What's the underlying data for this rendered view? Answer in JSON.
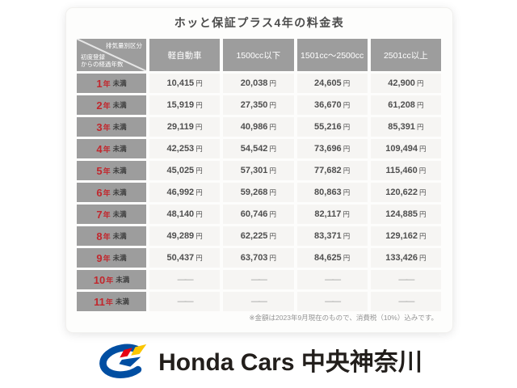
{
  "title": "ホッと保証プラス4年の料金表",
  "table": {
    "corner": {
      "top_right": "排気量別区分",
      "bottom_left": "初度登録\nからの経過年数"
    },
    "columns": [
      "軽自動車",
      "1500cc以下",
      "1501cc〜2500cc",
      "2501cc以上"
    ],
    "rows": [
      {
        "year": "1",
        "year_unit": "年",
        "suffix": "未満",
        "unit": "円",
        "values": [
          "10,415",
          "20,038",
          "24,605",
          "42,900"
        ]
      },
      {
        "year": "2",
        "year_unit": "年",
        "suffix": "未満",
        "unit": "円",
        "values": [
          "15,919",
          "27,350",
          "36,670",
          "61,208"
        ]
      },
      {
        "year": "3",
        "year_unit": "年",
        "suffix": "未満",
        "unit": "円",
        "values": [
          "29,119",
          "40,986",
          "55,216",
          "85,391"
        ]
      },
      {
        "year": "4",
        "year_unit": "年",
        "suffix": "未満",
        "unit": "円",
        "values": [
          "42,253",
          "54,542",
          "73,696",
          "109,494"
        ]
      },
      {
        "year": "5",
        "year_unit": "年",
        "suffix": "未満",
        "unit": "円",
        "values": [
          "45,025",
          "57,301",
          "77,682",
          "115,460"
        ]
      },
      {
        "year": "6",
        "year_unit": "年",
        "suffix": "未満",
        "unit": "円",
        "values": [
          "46,992",
          "59,268",
          "80,863",
          "120,622"
        ]
      },
      {
        "year": "7",
        "year_unit": "年",
        "suffix": "未満",
        "unit": "円",
        "values": [
          "48,140",
          "60,746",
          "82,117",
          "124,885"
        ]
      },
      {
        "year": "8",
        "year_unit": "年",
        "suffix": "未満",
        "unit": "円",
        "values": [
          "49,289",
          "62,225",
          "83,371",
          "129,162"
        ]
      },
      {
        "year": "9",
        "year_unit": "年",
        "suffix": "未満",
        "unit": "円",
        "values": [
          "50,437",
          "63,703",
          "84,625",
          "133,426"
        ]
      },
      {
        "year": "10",
        "year_unit": "年",
        "suffix": "未満",
        "unit": "",
        "values": [
          "――",
          "――",
          "――",
          "――"
        ]
      },
      {
        "year": "11",
        "year_unit": "年",
        "suffix": "未満",
        "unit": "",
        "values": [
          "――",
          "――",
          "――",
          "――"
        ]
      }
    ]
  },
  "footnote": "※金額は2023年9月現在のもので、消費税（10%）込みです。",
  "logo": {
    "text": "Honda Cars 中央神奈川"
  },
  "colors": {
    "header_gray": "#9d9d9d",
    "cell_bg": "#f6f5f3",
    "year_red": "#c1272d",
    "price_text": "#4f4f4f",
    "logo_blue": "#004ea2",
    "logo_red": "#e60012",
    "logo_yellow": "#fbc600"
  }
}
